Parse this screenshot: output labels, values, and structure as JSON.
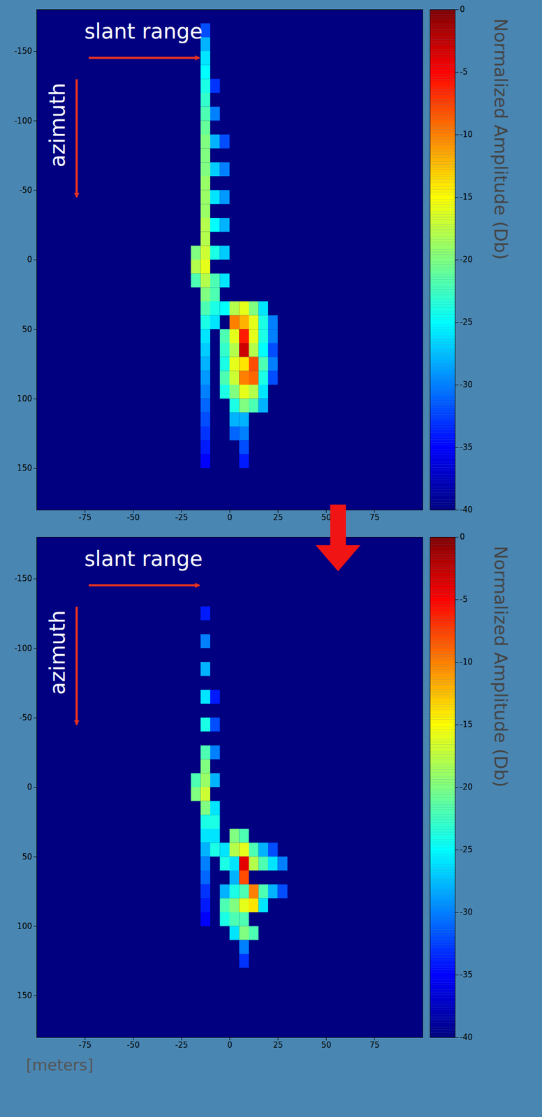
{
  "chart_data": [
    {
      "type": "heatmap",
      "annotations": [
        {
          "text": "slant range"
        },
        {
          "text": "azimuth"
        }
      ],
      "xlim": [
        -100,
        100
      ],
      "ylim": [
        -180,
        180
      ],
      "xticks": [
        -75,
        -50,
        -25,
        0,
        25,
        50,
        75
      ],
      "yticks": [
        -150,
        -100,
        -50,
        0,
        50,
        100,
        150
      ],
      "cell_size": [
        5,
        10
      ],
      "background": -40,
      "cells": [
        [
          -12.5,
          -165,
          -32
        ],
        [
          -12.5,
          -155,
          -28
        ],
        [
          -12.5,
          -145,
          -26
        ],
        [
          -12.5,
          -135,
          -25
        ],
        [
          -12.5,
          -125,
          -24
        ],
        [
          -12.5,
          -115,
          -23
        ],
        [
          -12.5,
          -105,
          -22
        ],
        [
          -12.5,
          -95,
          -21
        ],
        [
          -12.5,
          -85,
          -20
        ],
        [
          -12.5,
          -75,
          -20
        ],
        [
          -12.5,
          -65,
          -20
        ],
        [
          -12.5,
          -55,
          -19
        ],
        [
          -12.5,
          -45,
          -19
        ],
        [
          -12.5,
          -35,
          -19
        ],
        [
          -12.5,
          -25,
          -18
        ],
        [
          -12.5,
          -15,
          -18
        ],
        [
          -12.5,
          -5,
          -17
        ],
        [
          -12.5,
          5,
          -16
        ],
        [
          -12.5,
          15,
          -18
        ],
        [
          -12.5,
          25,
          -20
        ],
        [
          -12.5,
          35,
          -22
        ],
        [
          -12.5,
          45,
          -24
        ],
        [
          -12.5,
          55,
          -26
        ],
        [
          -12.5,
          65,
          -27
        ],
        [
          -12.5,
          75,
          -28
        ],
        [
          -12.5,
          85,
          -29
        ],
        [
          -12.5,
          95,
          -30
        ],
        [
          -12.5,
          105,
          -31
        ],
        [
          -12.5,
          115,
          -32
        ],
        [
          -12.5,
          125,
          -33
        ],
        [
          -12.5,
          135,
          -34
        ],
        [
          -12.5,
          145,
          -35
        ],
        [
          -17.5,
          -5,
          -20
        ],
        [
          -17.5,
          5,
          -18
        ],
        [
          -17.5,
          15,
          -22
        ],
        [
          -7.5,
          -125,
          -33
        ],
        [
          -7.5,
          -105,
          -30
        ],
        [
          -7.5,
          -85,
          -28
        ],
        [
          -7.5,
          -65,
          -27
        ],
        [
          -7.5,
          -45,
          -26
        ],
        [
          -7.5,
          -25,
          -25
        ],
        [
          -7.5,
          -5,
          -24
        ],
        [
          -7.5,
          15,
          -22
        ],
        [
          -7.5,
          25,
          -22
        ],
        [
          -7.5,
          35,
          -24
        ],
        [
          -7.5,
          45,
          -26
        ],
        [
          -2.5,
          -85,
          -32
        ],
        [
          -2.5,
          -65,
          -30
        ],
        [
          -2.5,
          -45,
          -29
        ],
        [
          -2.5,
          -25,
          -28
        ],
        [
          -2.5,
          -5,
          -27
        ],
        [
          -2.5,
          15,
          -26
        ],
        [
          -2.5,
          35,
          -25
        ],
        [
          -2.5,
          55,
          -22
        ],
        [
          -2.5,
          65,
          -23
        ],
        [
          -2.5,
          75,
          -24
        ],
        [
          -2.5,
          85,
          -22
        ],
        [
          -2.5,
          95,
          -24
        ],
        [
          2.5,
          35,
          -18
        ],
        [
          2.5,
          45,
          -10
        ],
        [
          2.5,
          55,
          -16
        ],
        [
          2.5,
          65,
          -18
        ],
        [
          2.5,
          75,
          -16
        ],
        [
          2.5,
          85,
          -17
        ],
        [
          2.5,
          95,
          -20
        ],
        [
          2.5,
          105,
          -24
        ],
        [
          2.5,
          115,
          -28
        ],
        [
          2.5,
          125,
          -31
        ],
        [
          7.5,
          35,
          -16
        ],
        [
          7.5,
          45,
          -12
        ],
        [
          7.5,
          55,
          -6
        ],
        [
          7.5,
          65,
          -3
        ],
        [
          7.5,
          75,
          -14
        ],
        [
          7.5,
          85,
          -10
        ],
        [
          7.5,
          95,
          -16
        ],
        [
          7.5,
          105,
          -20
        ],
        [
          7.5,
          115,
          -28
        ],
        [
          7.5,
          125,
          -30
        ],
        [
          7.5,
          135,
          -32
        ],
        [
          7.5,
          145,
          -34
        ],
        [
          12.5,
          35,
          -20
        ],
        [
          12.5,
          45,
          -16
        ],
        [
          12.5,
          55,
          -16
        ],
        [
          12.5,
          65,
          -18
        ],
        [
          12.5,
          75,
          -8
        ],
        [
          12.5,
          85,
          -9
        ],
        [
          12.5,
          95,
          -18
        ],
        [
          12.5,
          105,
          -22
        ],
        [
          17.5,
          35,
          -26
        ],
        [
          17.5,
          45,
          -24
        ],
        [
          17.5,
          55,
          -24
        ],
        [
          17.5,
          65,
          -25
        ],
        [
          17.5,
          75,
          -22
        ],
        [
          17.5,
          85,
          -24
        ],
        [
          17.5,
          95,
          -26
        ],
        [
          17.5,
          105,
          -28
        ],
        [
          22.5,
          45,
          -30
        ],
        [
          22.5,
          55,
          -30
        ],
        [
          22.5,
          65,
          -32
        ],
        [
          22.5,
          75,
          -30
        ],
        [
          22.5,
          85,
          -32
        ]
      ],
      "colorbar": {
        "label": "Normalized Amplitude (Db)",
        "lim": [
          -40,
          0
        ],
        "ticks": [
          0,
          -5,
          -10,
          -15,
          -20,
          -25,
          -30,
          -35,
          -40
        ]
      }
    },
    {
      "type": "heatmap",
      "annotations": [
        {
          "text": "slant range"
        },
        {
          "text": "azimuth"
        }
      ],
      "xlabel": "[meters]",
      "xlim": [
        -100,
        100
      ],
      "ylim": [
        -180,
        180
      ],
      "xticks": [
        -75,
        -50,
        -25,
        0,
        25,
        50,
        75
      ],
      "yticks": [
        -150,
        -100,
        -50,
        0,
        50,
        100,
        150
      ],
      "cell_size": [
        5,
        10
      ],
      "background": -40,
      "cells": [
        [
          -12.5,
          -125,
          -34
        ],
        [
          -12.5,
          -105,
          -30
        ],
        [
          -12.5,
          -85,
          -28
        ],
        [
          -12.5,
          -65,
          -26
        ],
        [
          -12.5,
          -45,
          -24
        ],
        [
          -12.5,
          -25,
          -22
        ],
        [
          -12.5,
          -15,
          -20
        ],
        [
          -12.5,
          -5,
          -19
        ],
        [
          -12.5,
          5,
          -17
        ],
        [
          -12.5,
          15,
          -20
        ],
        [
          -12.5,
          25,
          -24
        ],
        [
          -12.5,
          35,
          -26
        ],
        [
          -12.5,
          45,
          -28
        ],
        [
          -12.5,
          55,
          -30
        ],
        [
          -12.5,
          65,
          -31
        ],
        [
          -12.5,
          75,
          -33
        ],
        [
          -12.5,
          85,
          -34
        ],
        [
          -12.5,
          95,
          -35
        ],
        [
          -17.5,
          -5,
          -22
        ],
        [
          -17.5,
          5,
          -20
        ],
        [
          -7.5,
          -65,
          -34
        ],
        [
          -7.5,
          -45,
          -32
        ],
        [
          -7.5,
          -25,
          -30
        ],
        [
          -7.5,
          -5,
          -28
        ],
        [
          -7.5,
          15,
          -26
        ],
        [
          -7.5,
          25,
          -24
        ],
        [
          -7.5,
          35,
          -26
        ],
        [
          -7.5,
          45,
          -24
        ],
        [
          -2.5,
          45,
          -26
        ],
        [
          -2.5,
          55,
          -24
        ],
        [
          -2.5,
          75,
          -28
        ],
        [
          -2.5,
          85,
          -22
        ],
        [
          -2.5,
          95,
          -24
        ],
        [
          2.5,
          35,
          -20
        ],
        [
          2.5,
          45,
          -18
        ],
        [
          2.5,
          55,
          -26
        ],
        [
          2.5,
          65,
          -28
        ],
        [
          2.5,
          75,
          -24
        ],
        [
          2.5,
          85,
          -20
        ],
        [
          2.5,
          95,
          -22
        ],
        [
          2.5,
          105,
          -26
        ],
        [
          7.5,
          35,
          -22
        ],
        [
          7.5,
          45,
          -16
        ],
        [
          7.5,
          55,
          -4
        ],
        [
          7.5,
          65,
          -8
        ],
        [
          7.5,
          75,
          -22
        ],
        [
          7.5,
          85,
          -16
        ],
        [
          7.5,
          95,
          -22
        ],
        [
          7.5,
          105,
          -20
        ],
        [
          7.5,
          115,
          -30
        ],
        [
          7.5,
          125,
          -33
        ],
        [
          12.5,
          45,
          -22
        ],
        [
          12.5,
          55,
          -18
        ],
        [
          12.5,
          75,
          -10
        ],
        [
          12.5,
          85,
          -14
        ],
        [
          12.5,
          105,
          -22
        ],
        [
          17.5,
          45,
          -28
        ],
        [
          17.5,
          55,
          -22
        ],
        [
          17.5,
          75,
          -22
        ],
        [
          17.5,
          85,
          -26
        ],
        [
          22.5,
          45,
          -32
        ],
        [
          22.5,
          55,
          -26
        ],
        [
          22.5,
          75,
          -28
        ],
        [
          27.5,
          55,
          -30
        ],
        [
          27.5,
          75,
          -32
        ]
      ],
      "colorbar": {
        "label": "Normalized Amplitude (Db)",
        "lim": [
          -40,
          0
        ],
        "ticks": [
          0,
          -5,
          -10,
          -15,
          -20,
          -25,
          -30,
          -35,
          -40
        ]
      }
    }
  ]
}
